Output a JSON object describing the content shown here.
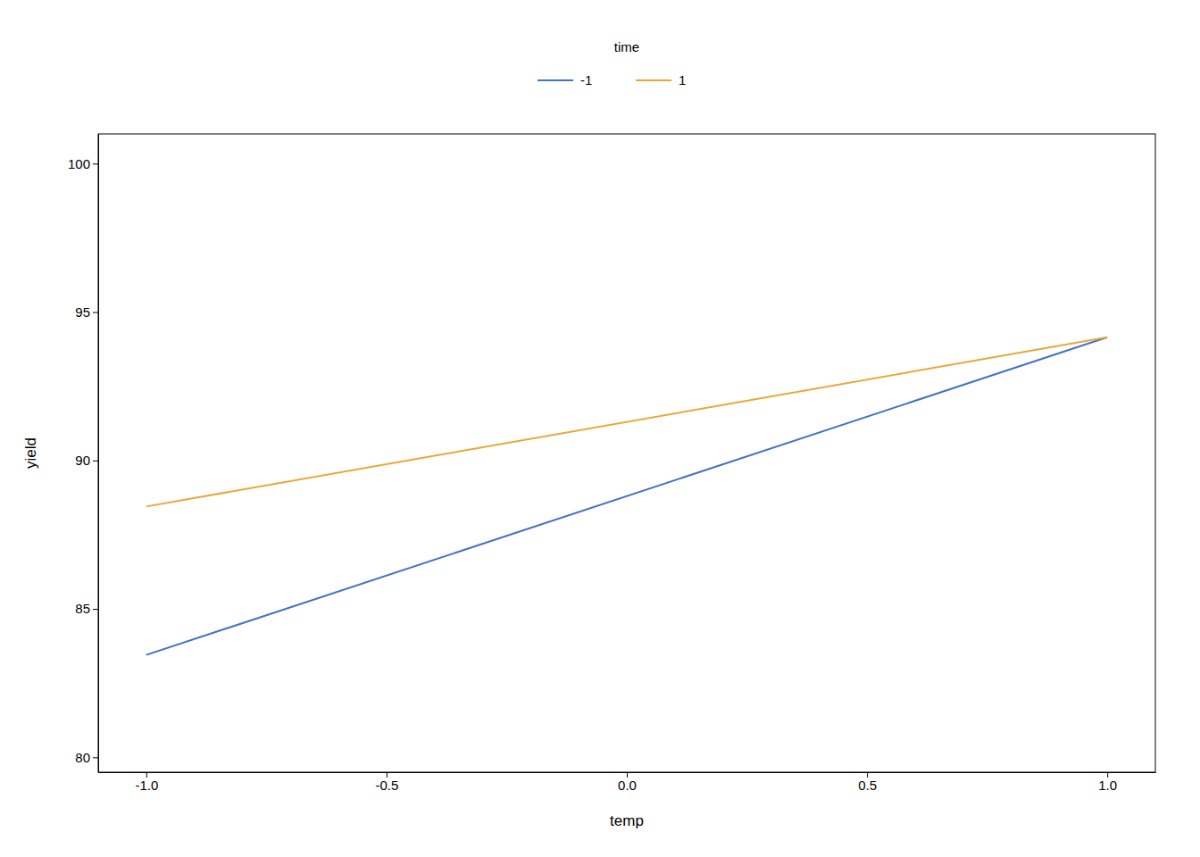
{
  "chart_data": {
    "type": "line",
    "x": [
      -1.0,
      1.0
    ],
    "series": [
      {
        "name": "-1",
        "color": "#4472C4",
        "values": [
          83.45,
          94.15
        ]
      },
      {
        "name": "1",
        "color": "#E8A838",
        "values": [
          88.45,
          94.15
        ]
      }
    ],
    "xlabel": "temp",
    "ylabel": "yield",
    "legend_title": "time",
    "legend": "top",
    "xlim": [
      -1.1,
      1.1
    ],
    "ylim": [
      79.5,
      101.0
    ],
    "xticks": [
      {
        "value": -1.0,
        "label": "-1.0"
      },
      -0.5,
      {
        "value": 0.0,
        "label": "0.0"
      },
      0.5,
      {
        "value": 1.0,
        "label": "1.0"
      }
    ],
    "yticks": [
      80,
      85,
      90,
      95,
      100
    ],
    "grid": false
  }
}
